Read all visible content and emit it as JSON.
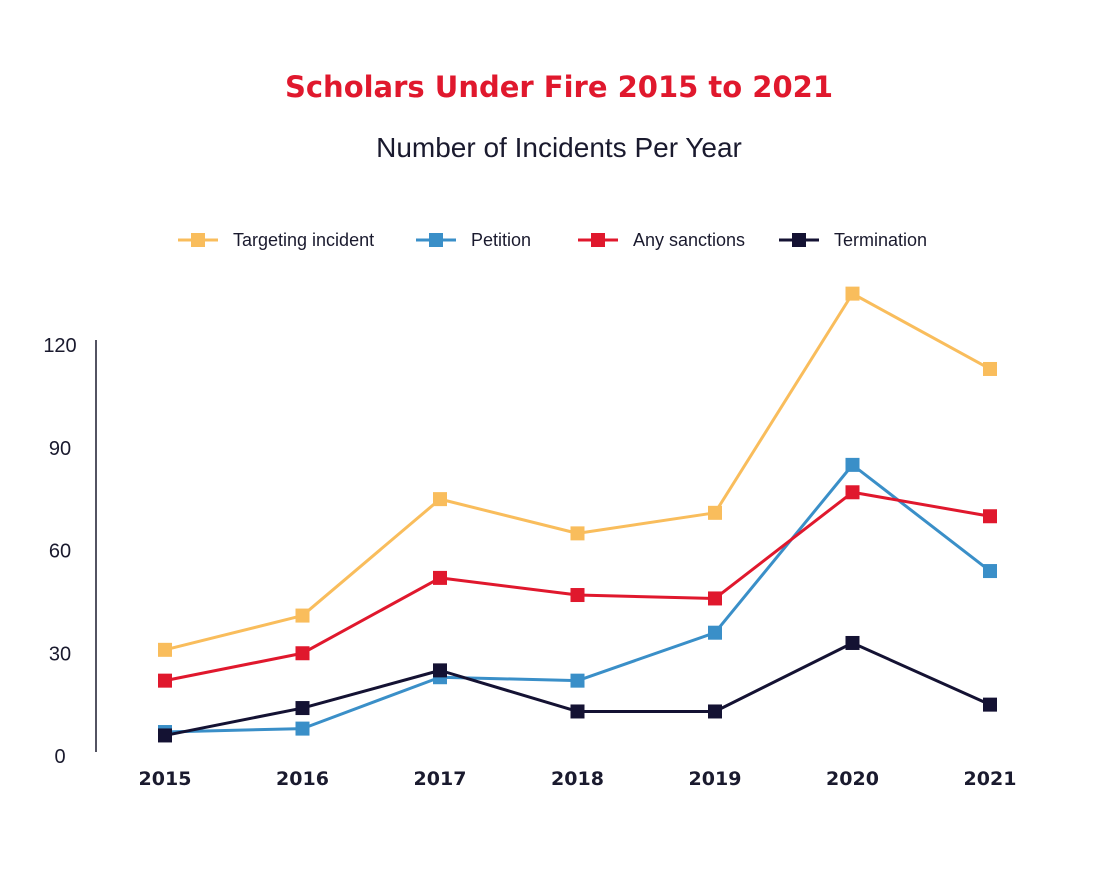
{
  "chart_data": {
    "type": "line",
    "title": "Scholars Under Fire 2015 to 2021",
    "subtitle": "Number of Incidents Per Year",
    "xlabel": "",
    "ylabel": "",
    "categories": [
      "2015",
      "2016",
      "2017",
      "2018",
      "2019",
      "2020",
      "2021"
    ],
    "ylim": [
      0,
      120
    ],
    "yticks": [
      0,
      30,
      60,
      90,
      120
    ],
    "grid": false,
    "legend_position": "top",
    "series": [
      {
        "name": "Targeting incident",
        "color": "#f9bd5c",
        "values": [
          31,
          41,
          75,
          65,
          71,
          135,
          113
        ]
      },
      {
        "name": "Petition",
        "color": "#3a8fc8",
        "values": [
          7,
          8,
          23,
          22,
          36,
          85,
          54
        ]
      },
      {
        "name": "Any sanctions",
        "color": "#e0182d",
        "values": [
          22,
          30,
          52,
          47,
          46,
          77,
          70
        ]
      },
      {
        "name": "Termination",
        "color": "#141233",
        "values": [
          6,
          14,
          25,
          13,
          13,
          33,
          15
        ]
      }
    ]
  },
  "colors": {
    "title": "#e0182d",
    "text": "#1a1a2e",
    "axis": "#1a1a2e"
  }
}
